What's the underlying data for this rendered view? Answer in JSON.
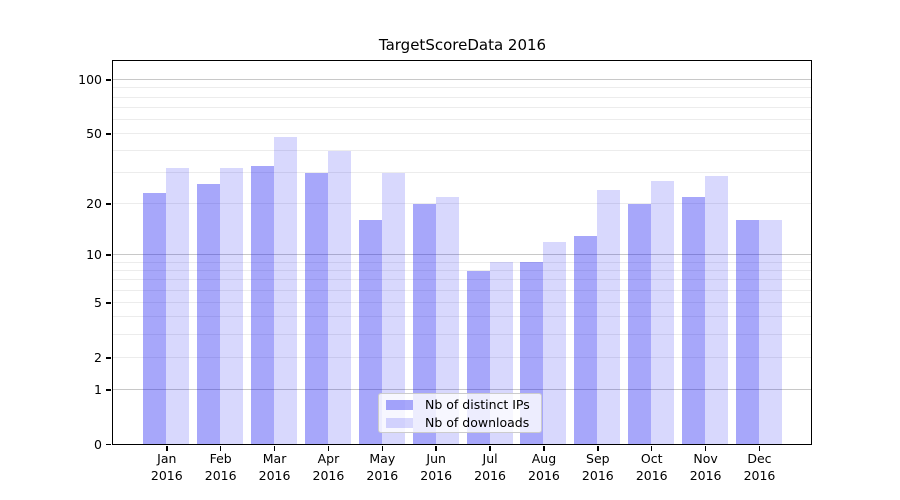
{
  "colors": {
    "bar_base": "#0a0af0",
    "ips_alpha": 0.36,
    "downloads_alpha": 0.16,
    "ips_effective": "#a6a6f9",
    "downloads_effective": "#d8d8fb",
    "major_grid": "#c8c8c8",
    "minor_grid": "#ececec",
    "axis": "#000000"
  },
  "chart_data": {
    "type": "bar",
    "title": "TargetScoreData 2016",
    "scale": "log1p",
    "categories": [
      "Jan",
      "Feb",
      "Mar",
      "Apr",
      "May",
      "Jun",
      "Jul",
      "Aug",
      "Sep",
      "Oct",
      "Nov",
      "Dec"
    ],
    "year": "2016",
    "series": [
      {
        "name": "Nb of distinct IPs",
        "values": [
          23,
          26,
          33,
          30,
          16,
          20,
          8,
          9,
          13,
          20,
          22,
          16
        ]
      },
      {
        "name": "Nb of downloads",
        "values": [
          32,
          32,
          48,
          40,
          30,
          22,
          9,
          12,
          24,
          27,
          29,
          16
        ]
      }
    ],
    "yticks": [
      0,
      1,
      2,
      5,
      10,
      20,
      50,
      100
    ],
    "major_gridlines": [
      1,
      10,
      100
    ],
    "minor_gridlines": [
      2,
      3,
      4,
      5,
      6,
      7,
      8,
      9,
      20,
      30,
      40,
      50,
      60,
      70,
      80,
      90
    ],
    "ylim": [
      0,
      127
    ],
    "grid": true,
    "legend_position": "lower center"
  }
}
